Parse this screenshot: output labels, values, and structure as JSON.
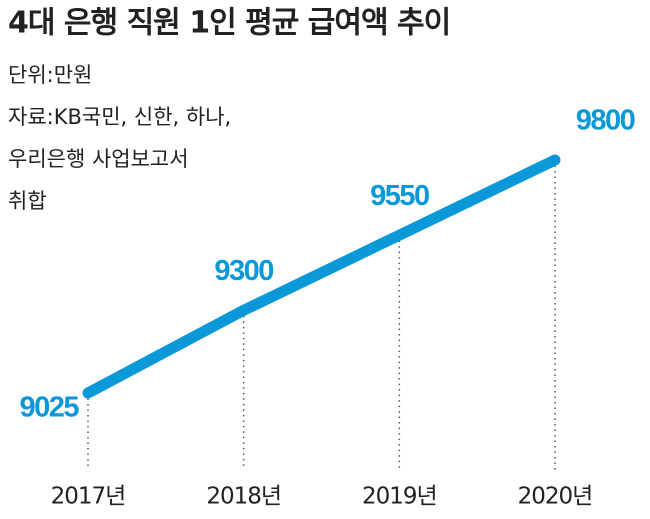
{
  "chart_data": {
    "type": "line",
    "title": "4대 은행 직원 1인 평균 급여액 추이",
    "notes": [
      "단위:만원",
      "자료:KB국민, 신한, 하나,",
      "우리은행 사업보고서",
      "취합"
    ],
    "categories": [
      "2017년",
      "2018년",
      "2019년",
      "2020년"
    ],
    "values": [
      9025,
      9300,
      9550,
      9800
    ],
    "color": "#0a98d8"
  }
}
